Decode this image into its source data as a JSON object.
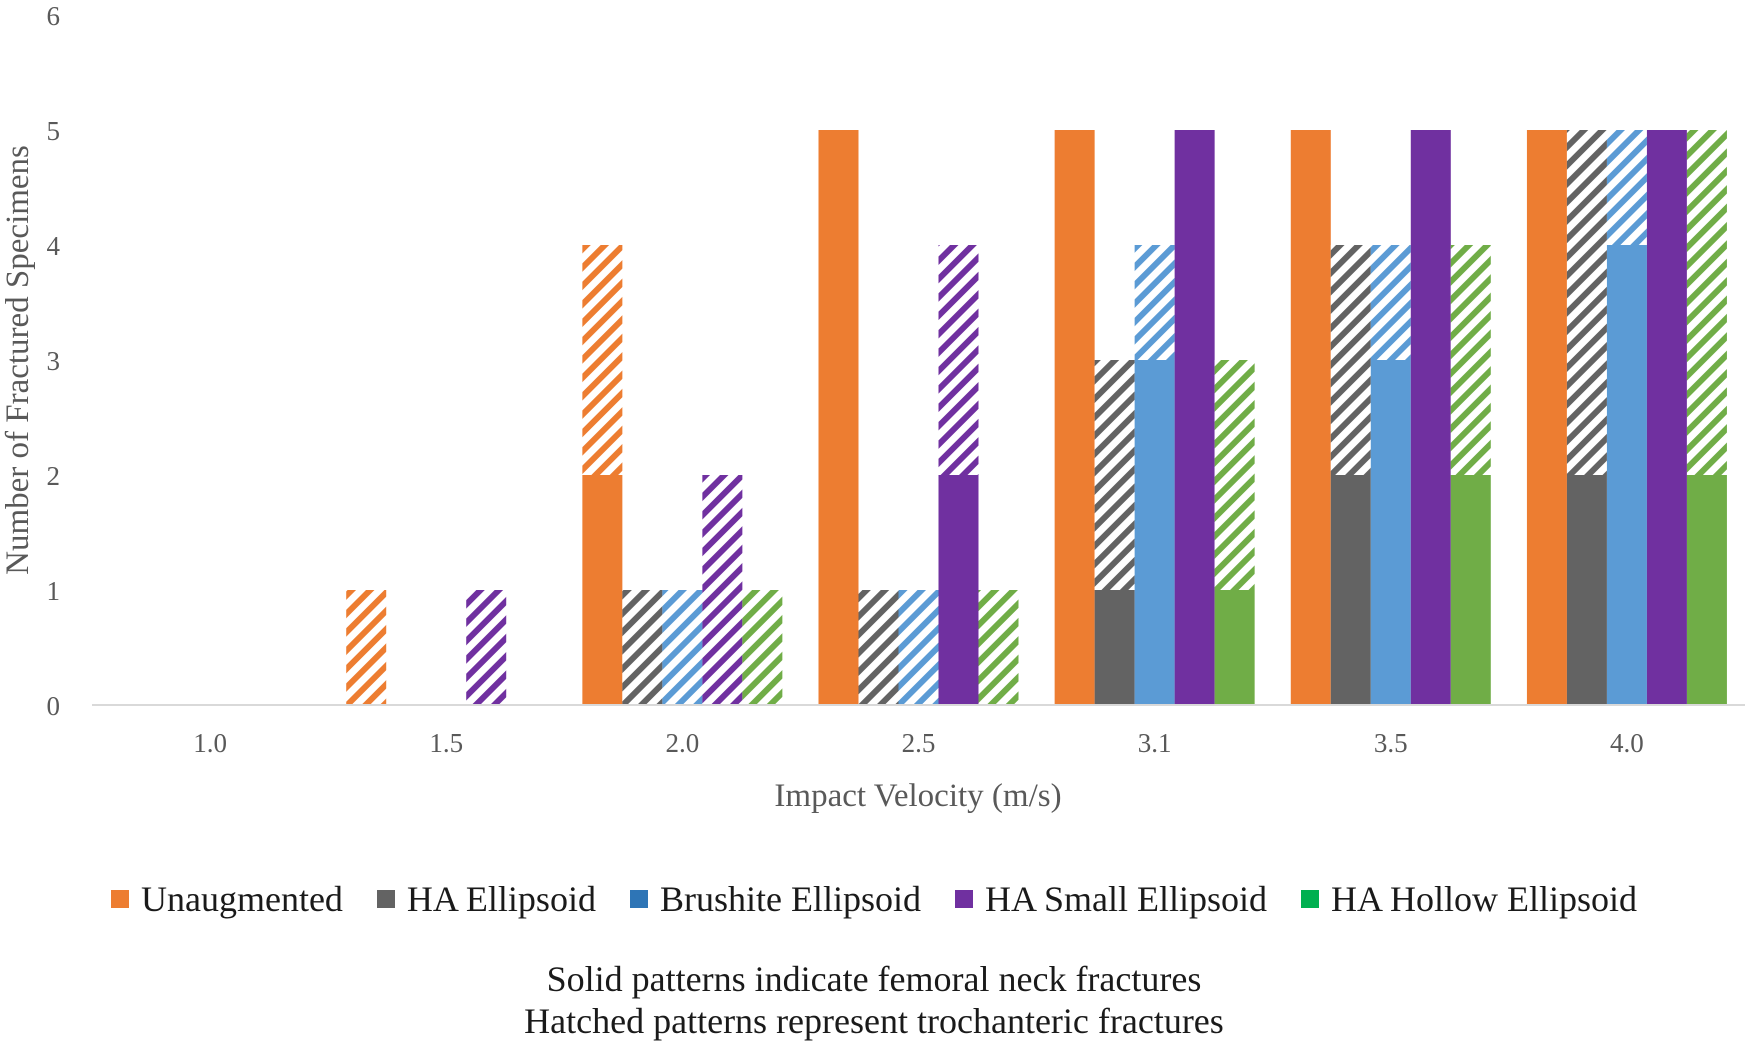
{
  "chart_data": {
    "type": "bar",
    "title": "",
    "xlabel": "Impact Velocity (m/s)",
    "ylabel": "Number of Fractured Specimens",
    "ylim": [
      0,
      6
    ],
    "yticks": [
      "0",
      "1",
      "2",
      "3",
      "4",
      "5",
      "6"
    ],
    "categories": [
      "1.0",
      "1.5",
      "2.0",
      "2.5",
      "3.1",
      "3.5",
      "4.0"
    ],
    "stacked_within_series": true,
    "series": [
      {
        "name": "Unaugmented",
        "color": "#ED7D31",
        "neck": [
          0,
          0,
          2,
          5,
          5,
          5,
          5
        ],
        "trochanteric": [
          0,
          1,
          2,
          0,
          0,
          0,
          0
        ]
      },
      {
        "name": "HA Ellipsoid",
        "color": "#636363",
        "neck": [
          0,
          0,
          0,
          0,
          1,
          2,
          2
        ],
        "trochanteric": [
          0,
          0,
          1,
          1,
          2,
          2,
          3
        ]
      },
      {
        "name": "Brushite Ellipsoid",
        "color": "#5B9BD5",
        "legend_color": "#2E75B6",
        "neck": [
          0,
          0,
          0,
          0,
          3,
          3,
          4
        ],
        "trochanteric": [
          0,
          0,
          1,
          1,
          1,
          1,
          1
        ]
      },
      {
        "name": "HA Small Ellipsoid",
        "color": "#7030A0",
        "neck": [
          0,
          0,
          0,
          2,
          5,
          5,
          5
        ],
        "trochanteric": [
          0,
          1,
          2,
          2,
          0,
          0,
          0
        ]
      },
      {
        "name": "HA Hollow Ellipsoid",
        "color": "#70AD47",
        "legend_color": "#00B050",
        "neck": [
          0,
          0,
          0,
          0,
          1,
          2,
          2
        ],
        "trochanteric": [
          0,
          0,
          1,
          1,
          2,
          2,
          3
        ]
      }
    ],
    "notes": [
      "Solid patterns indicate femoral neck fractures",
      "Hatched patterns represent trochanteric fractures"
    ],
    "legend_position": "bottom",
    "grid": false
  }
}
